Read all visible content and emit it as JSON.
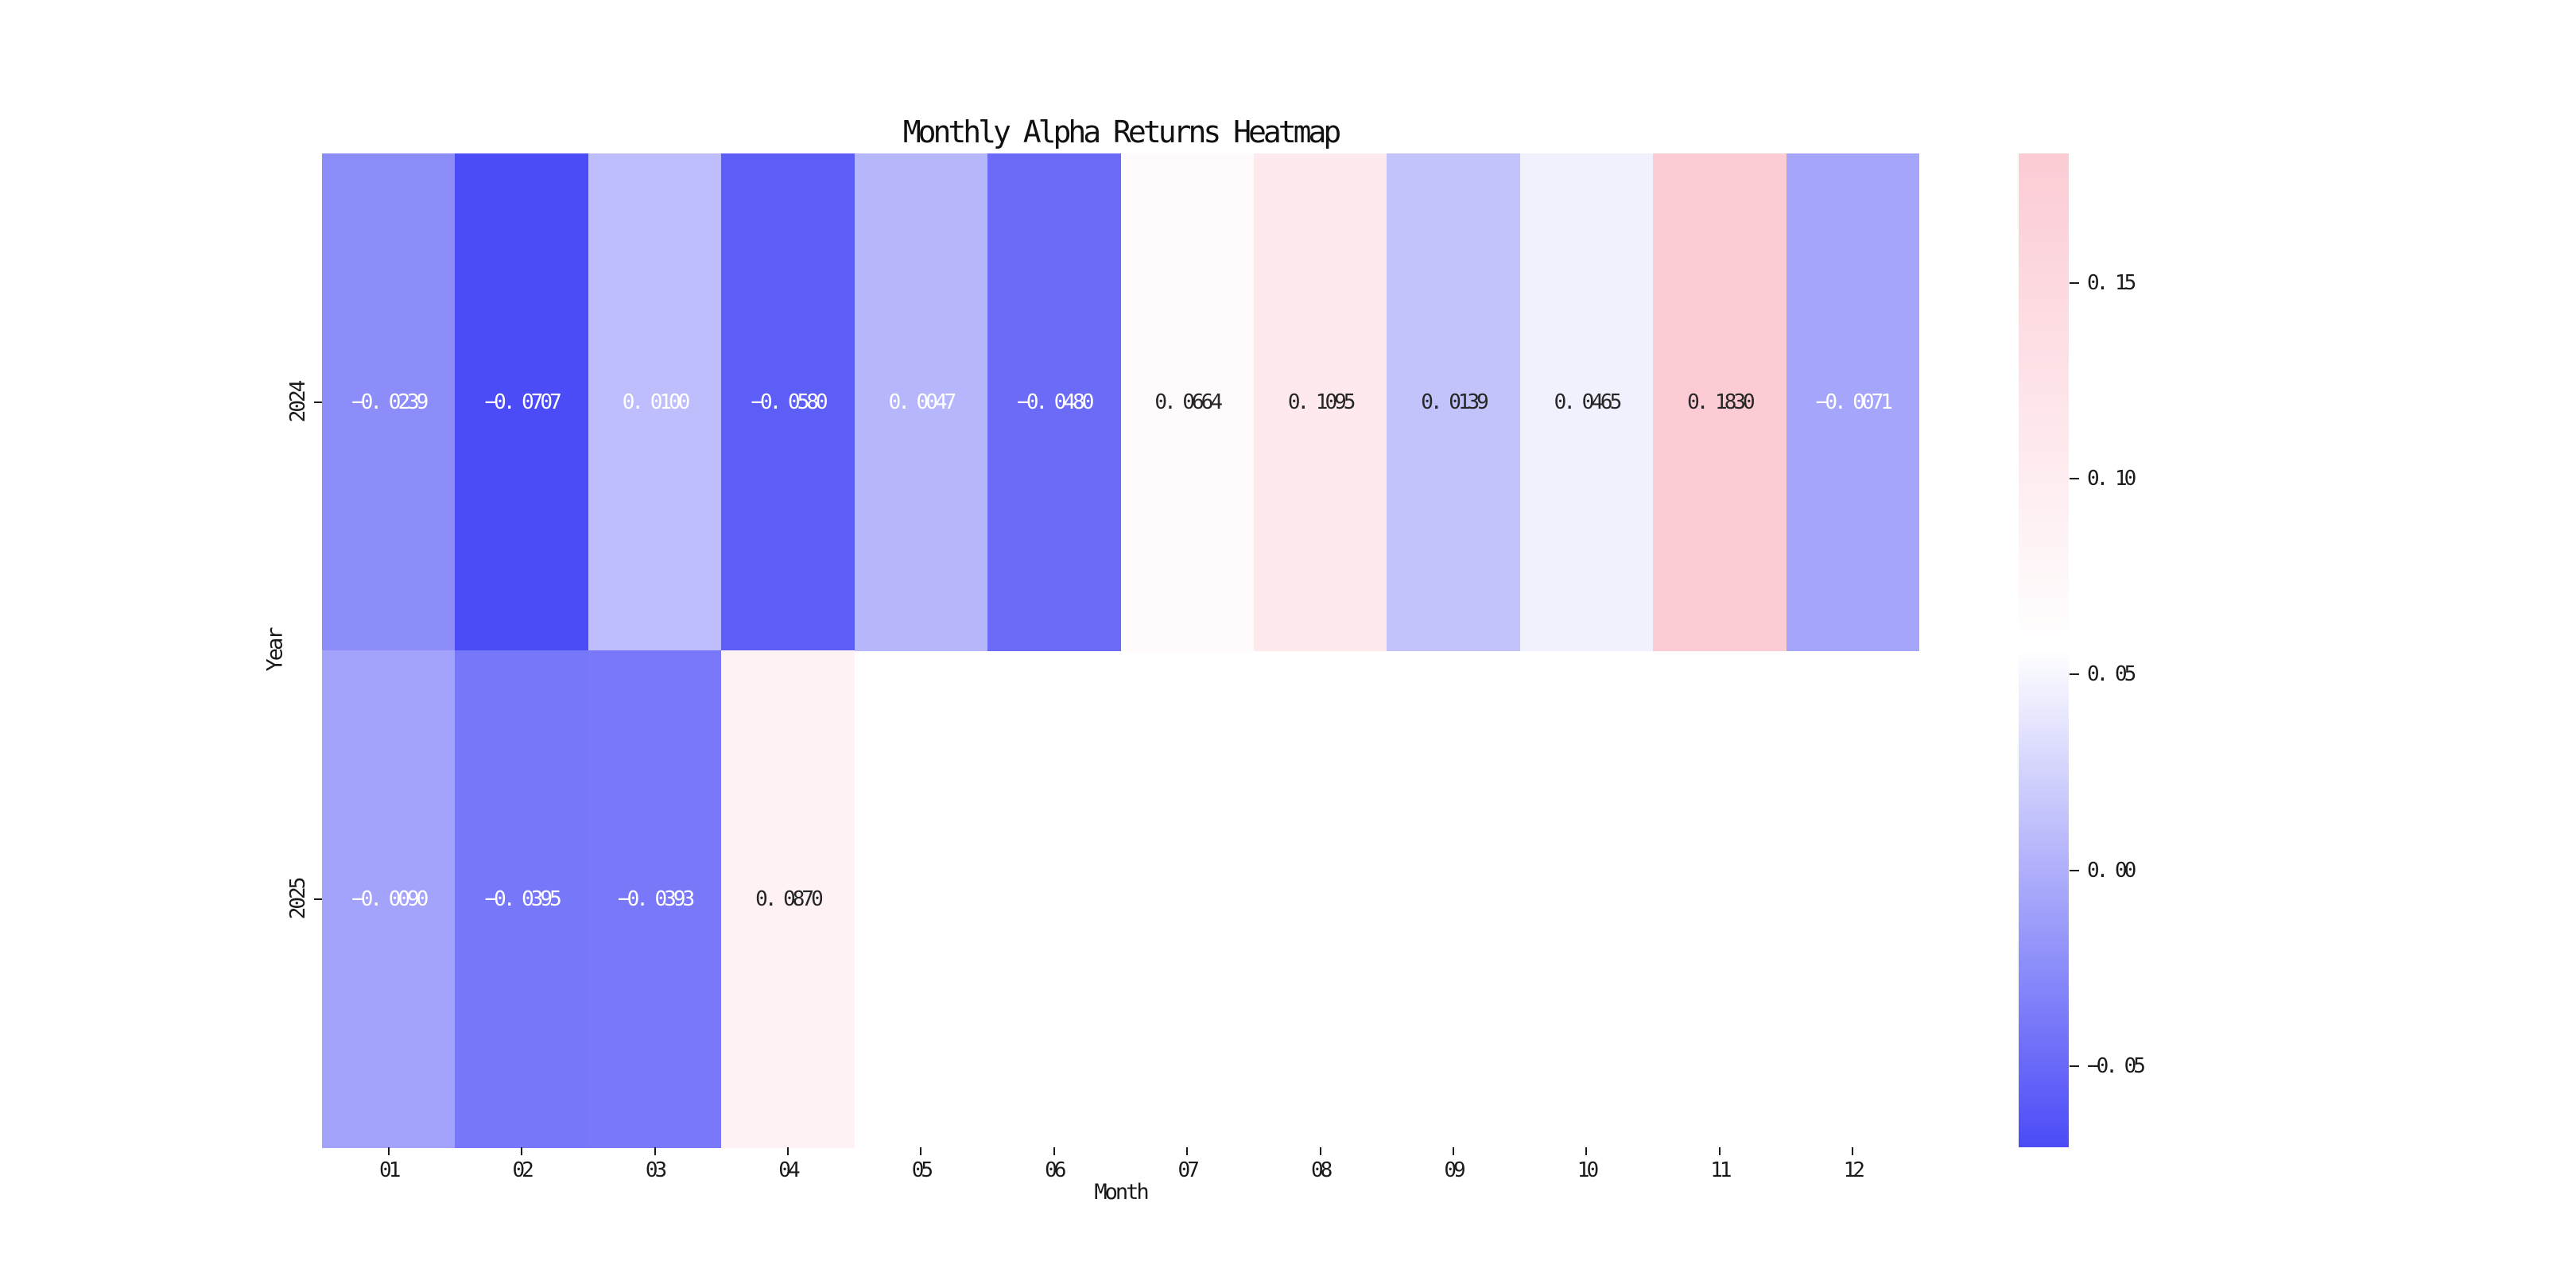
{
  "title": "Monthly Alpha Returns Heatmap",
  "chart_data": {
    "type": "heatmap",
    "title": "Monthly Alpha Returns Heatmap",
    "xlabel": "Month",
    "ylabel": "Year",
    "columns": [
      "01",
      "02",
      "03",
      "04",
      "05",
      "06",
      "07",
      "08",
      "09",
      "10",
      "11",
      "12"
    ],
    "rows": [
      "2024",
      "2025"
    ],
    "series": [
      {
        "name": "2024",
        "values": [
          -0.0239,
          -0.0707,
          0.01,
          -0.058,
          0.0047,
          -0.048,
          0.0664,
          0.1095,
          0.0139,
          0.0465,
          0.183,
          -0.0071
        ],
        "labels": [
          "−0. 0239",
          "−0. 0707",
          "0. 0100",
          "−0. 0580",
          "0. 0047",
          "−0. 0480",
          "0. 0664",
          "0. 1095",
          "0. 0139",
          "0. 0465",
          "0. 1830",
          "−0. 0071"
        ],
        "text_colors": [
          "w",
          "w",
          "w",
          "w",
          "w",
          "w",
          "k",
          "k",
          "k",
          "k",
          "k",
          "w"
        ]
      },
      {
        "name": "2025",
        "values": [
          -0.009,
          -0.0395,
          -0.0393,
          0.087,
          null,
          null,
          null,
          null,
          null,
          null,
          null,
          null
        ],
        "labels": [
          "−0. 0090",
          "−0. 0395",
          "−0. 0393",
          "0. 0870",
          "",
          "",
          "",
          "",
          "",
          "",
          "",
          ""
        ],
        "text_colors": [
          "w",
          "w",
          "w",
          "k",
          "",
          "",
          "",
          "",
          "",
          "",
          "",
          ""
        ]
      }
    ],
    "colorbar": {
      "vmin": -0.0707,
      "vmax": 0.183,
      "ticks": [
        0.15,
        0.1,
        0.05,
        0.0,
        -0.05
      ],
      "tick_labels": [
        "0. 15",
        "0. 10",
        "0. 05",
        "0. 00",
        "−0. 05"
      ],
      "color_min": "#4B4BF7",
      "color_mid": "#FFFFFF",
      "color_max": "#FCCBD4"
    },
    "annot_color_white": "#FFFFFF",
    "annot_color_dark": "#262626",
    "grid": false,
    "legend": false
  }
}
